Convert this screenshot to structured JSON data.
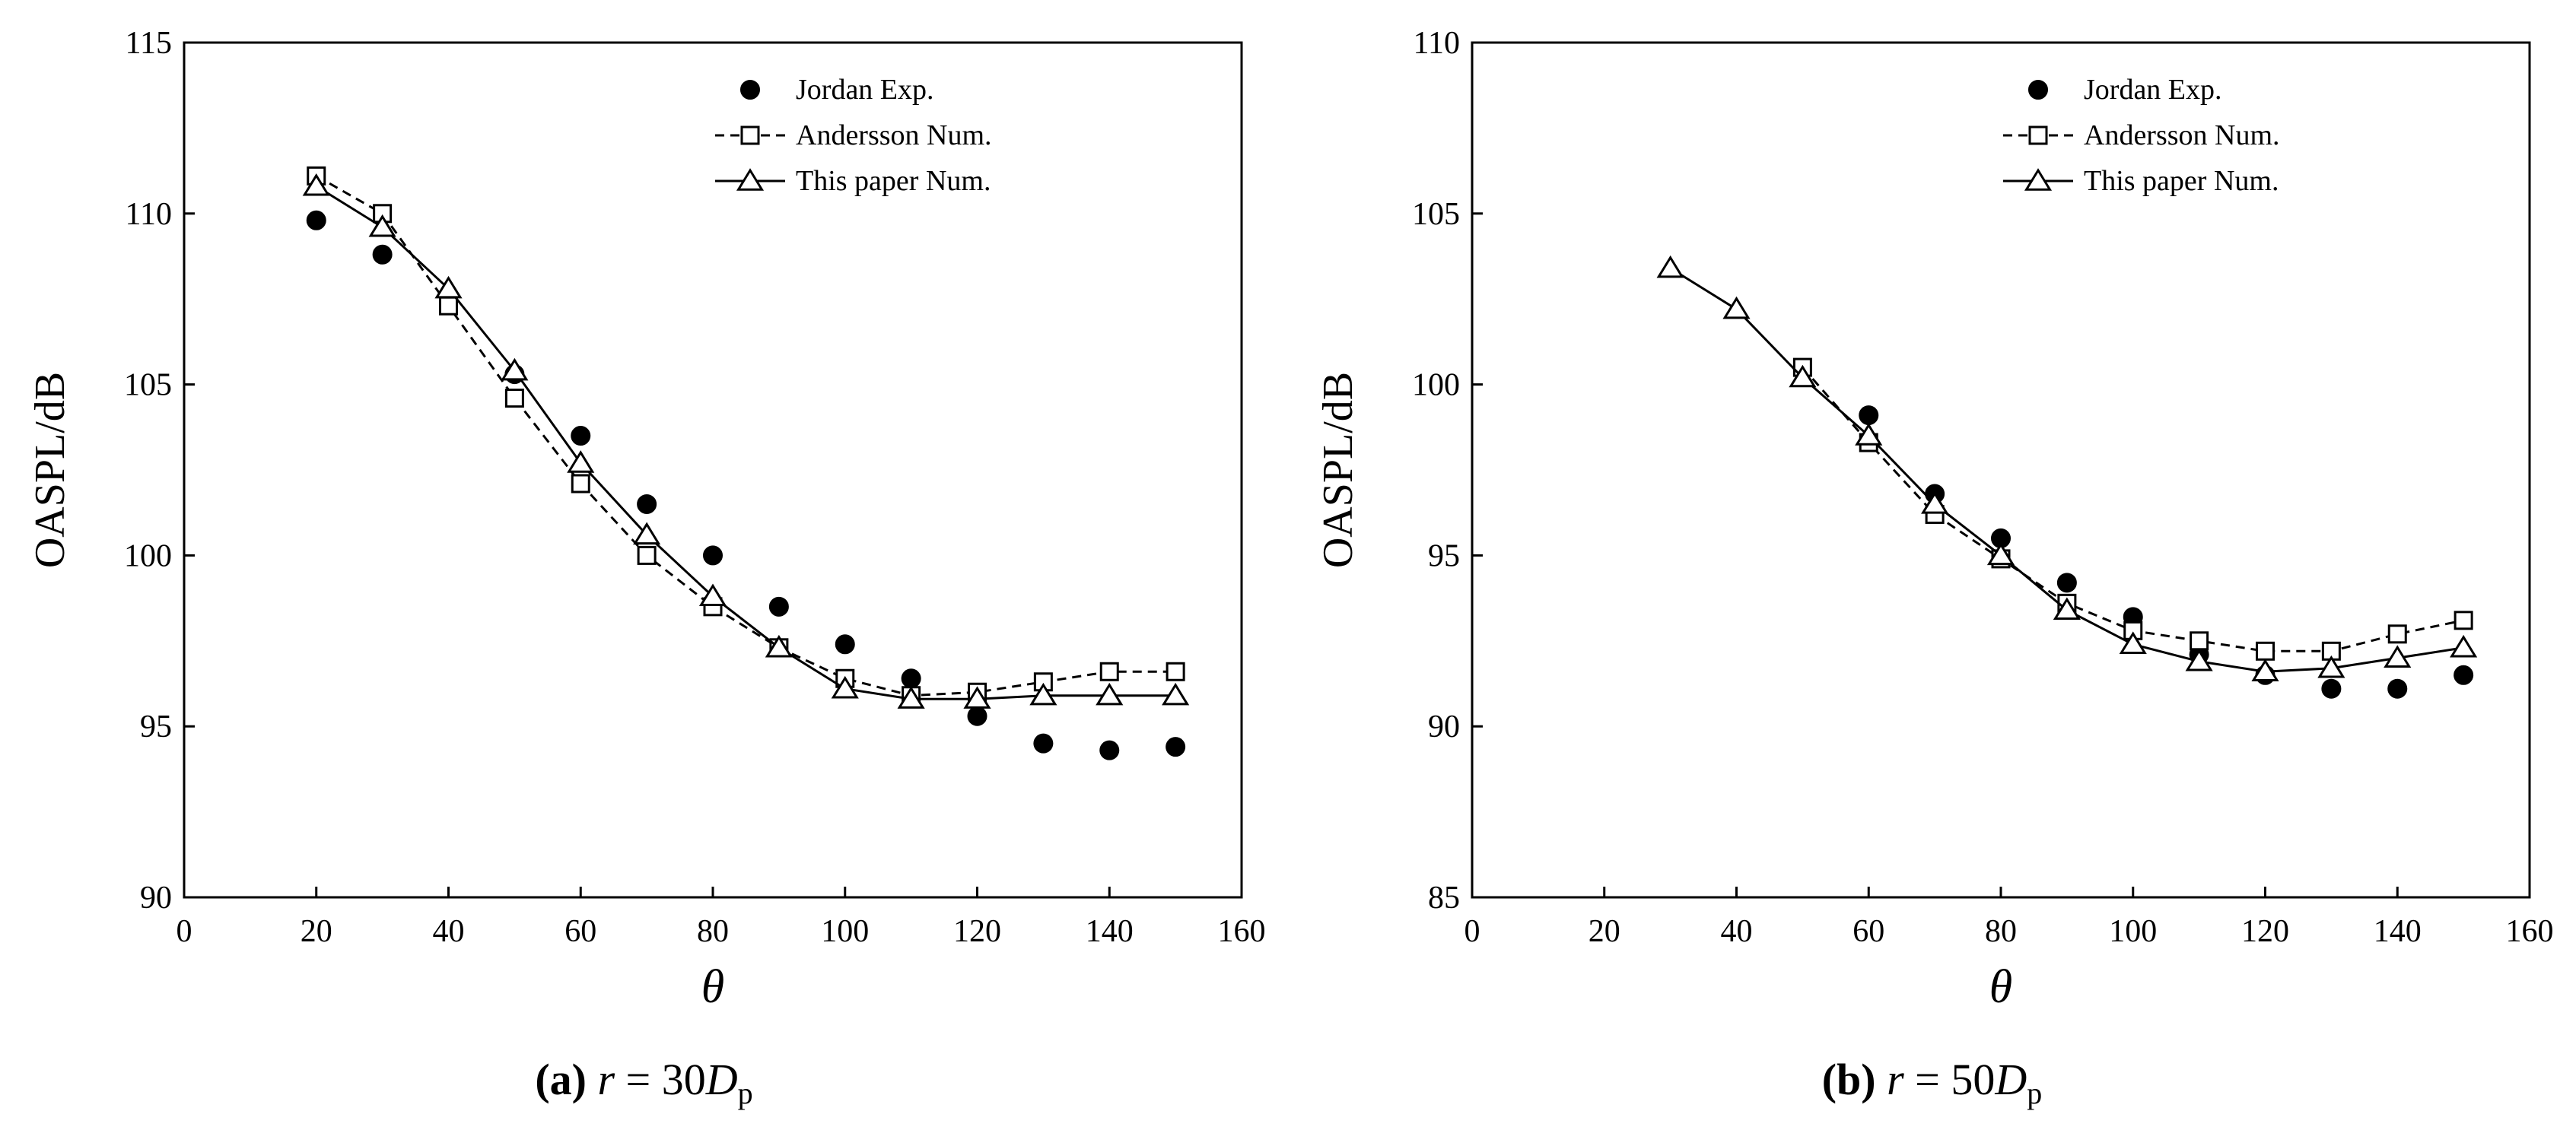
{
  "charts": [
    {
      "type": "line",
      "title": "",
      "xlabel": "θ",
      "ylabel": "OASPL/dB",
      "xlim": [
        0,
        160
      ],
      "ylim": [
        90,
        115
      ],
      "xticks": [
        0,
        20,
        40,
        60,
        80,
        100,
        120,
        140,
        160
      ],
      "yticks": [
        90,
        95,
        100,
        105,
        110,
        115
      ],
      "xtick_labels": [
        "0",
        "20",
        "40",
        "60",
        "80",
        "100",
        "120",
        "140",
        "160"
      ],
      "ytick_labels": [
        "90",
        "95",
        "100",
        "105",
        "110",
        "115"
      ],
      "legend_position": "top-right",
      "series": [
        {
          "name": "Jordan Exp.",
          "style": "markers",
          "marker": "filled-circle",
          "x": [
            20,
            30,
            40,
            50,
            60,
            70,
            80,
            90,
            100,
            110,
            120,
            130,
            140,
            150
          ],
          "values": [
            109.8,
            108.8,
            107.6,
            105.3,
            103.5,
            101.5,
            100.0,
            98.5,
            97.4,
            96.4,
            95.3,
            94.5,
            94.3,
            94.4
          ]
        },
        {
          "name": "Andersson Num.",
          "style": "dashed",
          "marker": "open-square",
          "x": [
            20,
            30,
            40,
            50,
            60,
            70,
            80,
            90,
            100,
            110,
            120,
            130,
            140,
            150
          ],
          "values": [
            111.1,
            110.0,
            107.3,
            104.6,
            102.1,
            100.0,
            98.5,
            97.3,
            96.4,
            95.9,
            96.0,
            96.3,
            96.6,
            96.6
          ]
        },
        {
          "name": "This paper Num.",
          "style": "solid",
          "marker": "open-triangle",
          "x": [
            20,
            30,
            40,
            50,
            60,
            70,
            80,
            90,
            100,
            110,
            120,
            130,
            140,
            150
          ],
          "values": [
            110.8,
            109.6,
            107.8,
            105.4,
            102.7,
            100.6,
            98.8,
            97.3,
            96.1,
            95.8,
            95.8,
            95.9,
            95.9,
            95.9
          ]
        }
      ],
      "caption": {
        "tag": "(a)",
        "r": "r",
        "eq": " = 30",
        "d": "D",
        "sub": "p"
      }
    },
    {
      "type": "line",
      "title": "",
      "xlabel": "θ",
      "ylabel": "OASPL/dB",
      "xlim": [
        0,
        160
      ],
      "ylim": [
        85,
        110
      ],
      "xticks": [
        0,
        20,
        40,
        60,
        80,
        100,
        120,
        140,
        160
      ],
      "yticks": [
        85,
        90,
        95,
        100,
        105,
        110
      ],
      "xtick_labels": [
        "0",
        "20",
        "40",
        "60",
        "80",
        "100",
        "120",
        "140",
        "160"
      ],
      "ytick_labels": [
        "85",
        "90",
        "95",
        "100",
        "105",
        "110"
      ],
      "legend_position": "top-right",
      "series": [
        {
          "name": "Jordan Exp.",
          "style": "markers",
          "marker": "filled-circle",
          "x": [
            60,
            70,
            80,
            90,
            100,
            110,
            120,
            130,
            140,
            150
          ],
          "values": [
            99.1,
            96.8,
            95.5,
            94.2,
            93.2,
            92.1,
            91.5,
            91.1,
            91.1,
            91.5
          ]
        },
        {
          "name": "Andersson Num.",
          "style": "dashed",
          "marker": "open-square",
          "x": [
            50,
            60,
            70,
            80,
            90,
            100,
            110,
            120,
            130,
            140,
            150
          ],
          "values": [
            100.5,
            98.3,
            96.2,
            94.9,
            93.6,
            92.8,
            92.5,
            92.2,
            92.2,
            92.7,
            93.1
          ]
        },
        {
          "name": "This paper Num.",
          "style": "solid",
          "marker": "open-triangle",
          "x": [
            30,
            40,
            50,
            60,
            70,
            80,
            90,
            100,
            110,
            120,
            130,
            140,
            150
          ],
          "values": [
            103.4,
            102.2,
            100.2,
            98.5,
            96.5,
            95.0,
            93.4,
            92.4,
            91.9,
            91.6,
            91.7,
            92.0,
            92.3
          ]
        }
      ],
      "caption": {
        "tag": "(b)",
        "r": "r",
        "eq": " = 50",
        "d": "D",
        "sub": "p"
      }
    }
  ]
}
